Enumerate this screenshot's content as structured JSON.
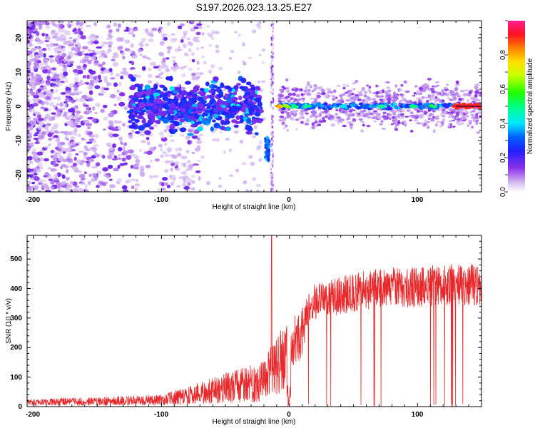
{
  "chart_data": [
    {
      "type": "heatmap",
      "title": "S197.2026.023.13.25.E27",
      "xlabel": "Height of straight line (km)",
      "ylabel": "Frequency (Hz)",
      "xlim": [
        -205,
        150
      ],
      "ylim": [
        -25,
        25
      ],
      "xticks": [
        -200,
        -100,
        0,
        100
      ],
      "xtick_labels": [
        "-200",
        "-100",
        "0",
        "100"
      ],
      "yticks": [
        20,
        10,
        0,
        -10,
        -20
      ],
      "ytick_labels": [
        "20",
        "10",
        "0",
        "-10",
        "-20"
      ],
      "colorbar": {
        "label": "Normalized spectral amplitude",
        "range": [
          0,
          1
        ],
        "ticks": [
          0,
          0.2,
          0.4,
          0.6,
          0.8
        ],
        "tick_labels": [
          "0.0",
          "0.2",
          "0.4",
          "0.6",
          "0.8"
        ]
      },
      "description_series": [
        {
          "name": "diffuse scatter",
          "x_range": [
            -205,
            -110
          ],
          "freq_range": [
            -25,
            25
          ],
          "amplitude": 0.1
        },
        {
          "name": "band near 0 Hz",
          "x_range": [
            -125,
            -22
          ],
          "freq_range": [
            -10,
            10
          ],
          "amplitude": 0.25
        },
        {
          "name": "burst",
          "x": -18,
          "freq_range": [
            -16,
            -9
          ],
          "amplitude": 0.3
        },
        {
          "name": "tone",
          "x_range": [
            -10,
            150
          ],
          "freq": 0,
          "amplitude": 0.35
        },
        {
          "name": "tone peak",
          "x_range": [
            128,
            150
          ],
          "freq": 0,
          "amplitude": 0.95
        }
      ]
    },
    {
      "type": "line",
      "xlabel": "Height of straight line (km)",
      "ylabel": "SNR (10 * v/v)",
      "xlim": [
        -205,
        150
      ],
      "ylim": [
        0,
        580
      ],
      "xticks": [
        -200,
        -100,
        0,
        100
      ],
      "xtick_labels": [
        "-200",
        "-100",
        "0",
        "100"
      ],
      "yticks": [
        0,
        100,
        200,
        300,
        400,
        500
      ],
      "ytick_labels": [
        "0",
        "100",
        "200",
        "300",
        "400",
        "500"
      ],
      "color": "#e8282a",
      "envelope_x": [
        -205,
        -150,
        -100,
        -80,
        -60,
        -40,
        -30,
        -20,
        -15,
        -10,
        -5,
        0,
        5,
        10,
        20,
        40,
        60,
        80,
        100,
        120,
        150
      ],
      "envelope_y": [
        15,
        20,
        25,
        40,
        60,
        80,
        95,
        110,
        140,
        160,
        200,
        240,
        290,
        320,
        380,
        400,
        420,
        430,
        430,
        440,
        440
      ],
      "spike": {
        "x": -14,
        "y": 580
      }
    }
  ]
}
